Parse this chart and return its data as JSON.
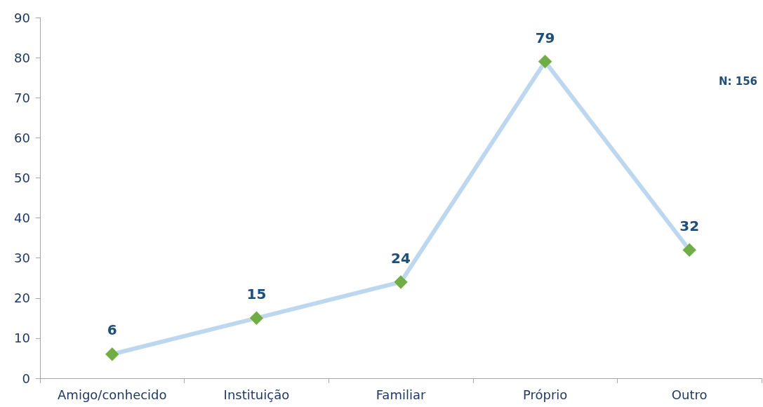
{
  "chart_data": {
    "type": "line",
    "categories": [
      "Amigo/conhecido",
      "Instituição",
      "Familiar",
      "Próprio",
      "Outro"
    ],
    "series": [
      {
        "color": "#bdd7ee",
        "colors": [
          "#70ad47",
          "#70ad47",
          "#70ad47",
          "#70ad47",
          "#70ad47"
        ],
        "values": [
          6,
          15,
          24,
          79,
          32
        ]
      }
    ],
    "ylim": [
      0,
      90
    ],
    "yticks": [
      0,
      10,
      20,
      30,
      40,
      50,
      60,
      70,
      80,
      90
    ],
    "marker": "diamond",
    "line_style": "solid",
    "data_labels": true,
    "grid": false,
    "annotations": [
      "N: 156"
    ]
  }
}
